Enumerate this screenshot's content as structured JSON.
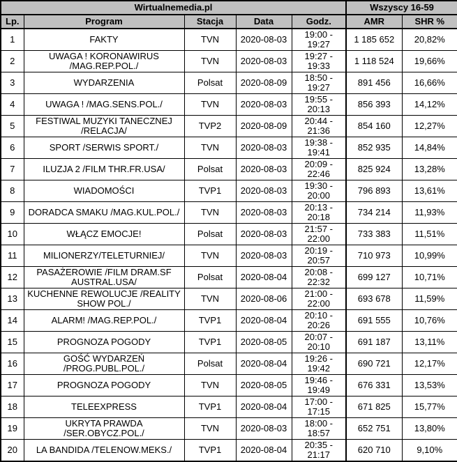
{
  "colors": {
    "header_bg": "#c0c0c0",
    "border": "#000000",
    "text": "#000000",
    "row_bg": "#ffffff"
  },
  "chart_data": {
    "type": "table",
    "title": "Wirtualnemedia.pl",
    "group_header": "Wszyscy 16-59",
    "columns": [
      "Lp.",
      "Program",
      "Stacja",
      "Data",
      "Godz.",
      "AMR",
      "SHR %"
    ],
    "rows": [
      {
        "lp": "1",
        "program": "FAKTY",
        "stacja": "TVN",
        "data": "2020-08-03",
        "godz": "19:00 - 19:27",
        "amr": "1 185 652",
        "shr": "20,82%"
      },
      {
        "lp": "2",
        "program": "UWAGA ! KORONAWIRUS /MAG.REP.POL./",
        "stacja": "TVN",
        "data": "2020-08-03",
        "godz": "19:27 - 19:33",
        "amr": "1 118 524",
        "shr": "19,66%"
      },
      {
        "lp": "3",
        "program": "WYDARZENIA",
        "stacja": "Polsat",
        "data": "2020-08-09",
        "godz": "18:50 - 19:27",
        "amr": "891 456",
        "shr": "16,66%"
      },
      {
        "lp": "4",
        "program": "UWAGA ! /MAG.SENS.POL./",
        "stacja": "TVN",
        "data": "2020-08-03",
        "godz": "19:55 - 20:13",
        "amr": "856 393",
        "shr": "14,12%"
      },
      {
        "lp": "5",
        "program": "FESTIWAL MUZYKI TANECZNEJ /RELACJA/",
        "stacja": "TVP2",
        "data": "2020-08-09",
        "godz": "20:44 - 21:36",
        "amr": "854 160",
        "shr": "12,27%"
      },
      {
        "lp": "6",
        "program": "SPORT /SERWIS SPORT./",
        "stacja": "TVN",
        "data": "2020-08-03",
        "godz": "19:38 - 19:41",
        "amr": "852 935",
        "shr": "14,84%"
      },
      {
        "lp": "7",
        "program": "ILUZJA 2 /FILM THR.FR.USA/",
        "stacja": "Polsat",
        "data": "2020-08-03",
        "godz": "20:09 - 22:46",
        "amr": "825 924",
        "shr": "13,28%"
      },
      {
        "lp": "8",
        "program": "WIADOMOŚCI",
        "stacja": "TVP1",
        "data": "2020-08-03",
        "godz": "19:30 - 20:00",
        "amr": "796 893",
        "shr": "13,61%"
      },
      {
        "lp": "9",
        "program": "DORADCA SMAKU /MAG.KUL.POL./",
        "stacja": "TVN",
        "data": "2020-08-03",
        "godz": "20:13 - 20:18",
        "amr": "734 214",
        "shr": "11,93%"
      },
      {
        "lp": "10",
        "program": "WŁĄCZ EMOCJE!",
        "stacja": "Polsat",
        "data": "2020-08-03",
        "godz": "21:57 - 22:00",
        "amr": "733 383",
        "shr": "11,51%"
      },
      {
        "lp": "11",
        "program": "MILIONERZY/TELETURNIEJ/",
        "stacja": "TVN",
        "data": "2020-08-03",
        "godz": "20:19 - 20:57",
        "amr": "710 973",
        "shr": "10,99%"
      },
      {
        "lp": "12",
        "program": "PASAŻEROWIE /FILM DRAM.SF AUSTRAL.USA/",
        "stacja": "Polsat",
        "data": "2020-08-04",
        "godz": "20:08 - 22:32",
        "amr": "699 127",
        "shr": "10,71%"
      },
      {
        "lp": "13",
        "program": "KUCHENNE REWOLUCJE /REALITY SHOW POL./",
        "stacja": "TVN",
        "data": "2020-08-06",
        "godz": "21:00 - 22:00",
        "amr": "693 678",
        "shr": "11,59%"
      },
      {
        "lp": "14",
        "program": "ALARM! /MAG.REP.POL./",
        "stacja": "TVP1",
        "data": "2020-08-04",
        "godz": "20:10 - 20:26",
        "amr": "691 555",
        "shr": "10,76%"
      },
      {
        "lp": "15",
        "program": "PROGNOZA POGODY",
        "stacja": "TVP1",
        "data": "2020-08-05",
        "godz": "20:07 - 20:10",
        "amr": "691 187",
        "shr": "13,11%"
      },
      {
        "lp": "16",
        "program": "GOŚĆ WYDARZEŃ /PROG.PUBL.POL./",
        "stacja": "Polsat",
        "data": "2020-08-04",
        "godz": "19:26 - 19:42",
        "amr": "690 721",
        "shr": "12,17%"
      },
      {
        "lp": "17",
        "program": "PROGNOZA POGODY",
        "stacja": "TVN",
        "data": "2020-08-05",
        "godz": "19:46 - 19:49",
        "amr": "676 331",
        "shr": "13,53%"
      },
      {
        "lp": "18",
        "program": "TELEEXPRESS",
        "stacja": "TVP1",
        "data": "2020-08-04",
        "godz": "17:00 - 17:15",
        "amr": "671 825",
        "shr": "15,77%"
      },
      {
        "lp": "19",
        "program": "UKRYTA PRAWDA /SER.OBYCZ.POL./",
        "stacja": "TVN",
        "data": "2020-08-03",
        "godz": "18:00 - 18:57",
        "amr": "652 751",
        "shr": "13,80%"
      },
      {
        "lp": "20",
        "program": "LA BANDIDA /TELENOW.MEKS./",
        "stacja": "TVP1",
        "data": "2020-08-04",
        "godz": "20:35 - 21:17",
        "amr": "620 710",
        "shr": "9,10%"
      }
    ]
  }
}
